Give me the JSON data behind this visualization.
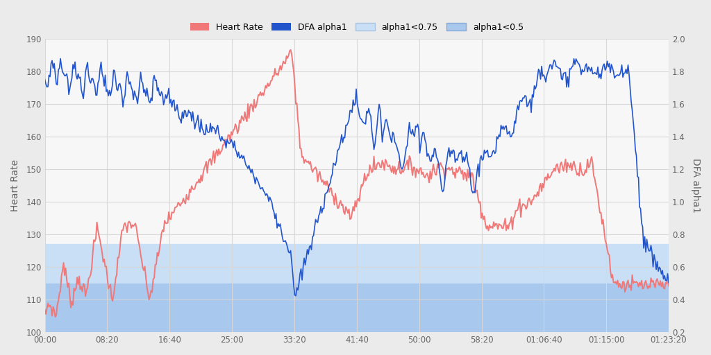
{
  "ylabel_left": "Heart Rate",
  "ylabel_right": "DFA alpha1",
  "hr_color": "#f07878",
  "dfa_color": "#2255cc",
  "alpha075_color": "#c8dff5",
  "alpha05_color": "#a8c8ee",
  "bg_color": "#f7f7f7",
  "grid_color": "#e0e0e0",
  "ylim_left": [
    100,
    190
  ],
  "ylim_right": [
    0.2,
    2.0
  ],
  "hr_band_075": 127,
  "hr_band_05": 115,
  "xtick_labels": [
    "00:00",
    "08:20",
    "16:40",
    "25:00",
    "33:20",
    "41:40",
    "50:00",
    "58:20",
    "01:06:40",
    "01:15:00",
    "01:23:20"
  ],
  "ytick_left": [
    100,
    110,
    120,
    130,
    140,
    150,
    160,
    170,
    180,
    190
  ],
  "ytick_right": [
    0.2,
    0.4,
    0.6,
    0.8,
    1.0,
    1.2,
    1.4,
    1.6,
    1.8,
    2.0
  ]
}
